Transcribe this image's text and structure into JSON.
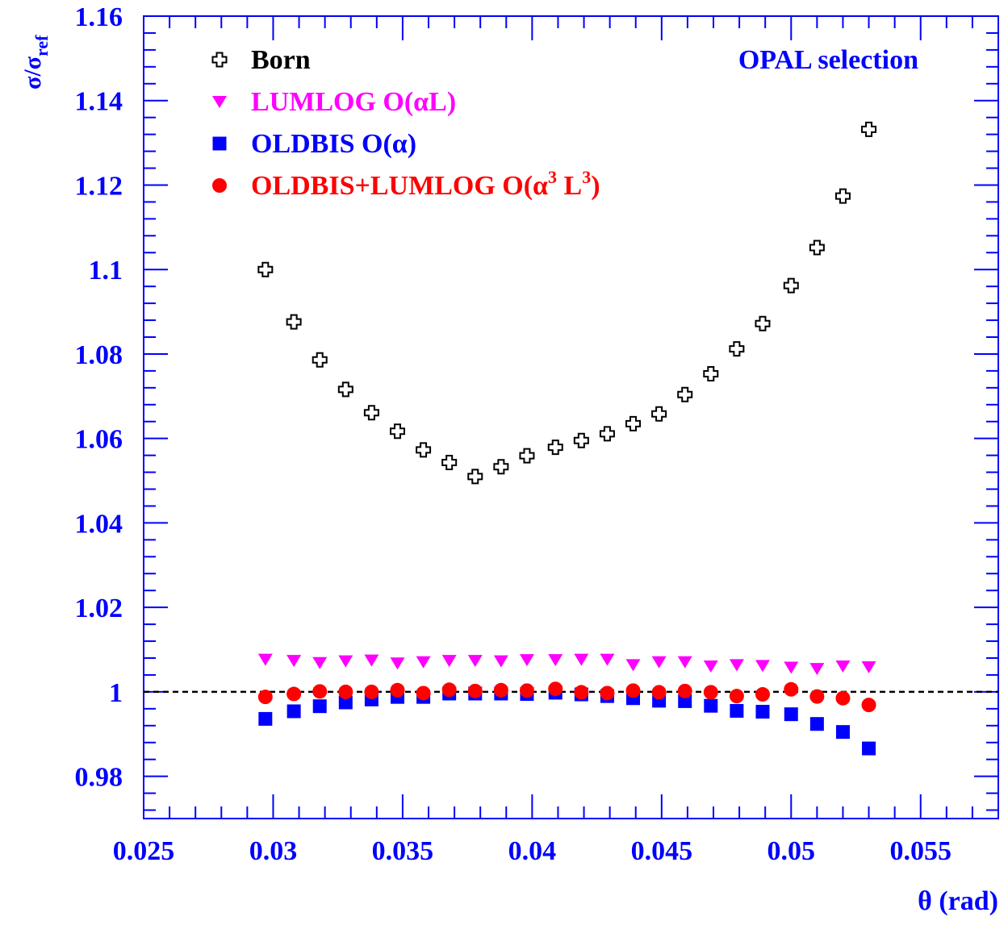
{
  "chart_data": {
    "type": "scatter",
    "xlabel": "θ (rad)",
    "ylabel": {
      "main": "σ/σ",
      "sub": "ref"
    },
    "xlim": [
      0.025,
      0.058
    ],
    "ylim": [
      0.97,
      1.16
    ],
    "xticks": [
      0.025,
      0.03,
      0.035,
      0.04,
      0.045,
      0.05,
      0.055
    ],
    "xtick_labels": [
      "0.025",
      "0.03",
      "0.035",
      "0.04",
      "0.045",
      "0.05",
      "0.055"
    ],
    "yticks": [
      0.98,
      1.0,
      1.02,
      1.04,
      1.06,
      1.08,
      1.1,
      1.12,
      1.14,
      1.16
    ],
    "ytick_labels": [
      "0.98",
      "1",
      "1.02",
      "1.04",
      "1.06",
      "1.08",
      "1.1",
      "1.12",
      "1.14",
      "1.16"
    ],
    "x_minor_step": 0.001,
    "y_minor_step": 0.004,
    "reference_line": {
      "y": 1.0,
      "style": "dashed",
      "color": "#000000"
    },
    "annotation": {
      "text": "OPAL selection",
      "color": "#0000ff",
      "position": "top-right"
    },
    "legend_position": "top-left",
    "x": [
      0.0297,
      0.0308,
      0.0318,
      0.0328,
      0.0338,
      0.0348,
      0.0358,
      0.0368,
      0.0378,
      0.0388,
      0.0398,
      0.0409,
      0.0419,
      0.0429,
      0.0439,
      0.0449,
      0.0459,
      0.0469,
      0.0479,
      0.0489,
      0.05,
      0.051,
      0.052,
      0.053
    ],
    "series": [
      {
        "name": "Born",
        "marker": "open-cross",
        "color": "#000000",
        "values": [
          1.1,
          1.0876,
          1.0786,
          1.0716,
          1.0661,
          1.0617,
          1.0573,
          1.0543,
          1.051,
          1.0533,
          1.0559,
          1.0579,
          1.0595,
          1.0611,
          1.0635,
          1.0658,
          1.0704,
          1.0753,
          1.0812,
          1.0872,
          1.0962,
          1.1052,
          1.1174,
          1.1332
        ]
      },
      {
        "name": "LUMLOG O(αL)",
        "legend_parts": [
          {
            "t": "LUMLOG O(αL)"
          }
        ],
        "marker": "triangle-down",
        "color": "#ff00ff",
        "values": [
          1.0077,
          1.0074,
          1.0069,
          1.0073,
          1.0075,
          1.0068,
          1.0071,
          1.0074,
          1.0074,
          1.0073,
          1.0076,
          1.0076,
          1.0077,
          1.0077,
          1.0064,
          1.0071,
          1.0071,
          1.0061,
          1.0064,
          1.0062,
          1.0058,
          1.0055,
          1.0061,
          1.0059
        ]
      },
      {
        "name": "OLDBIS O(α)",
        "legend_parts": [
          {
            "t": "OLDBIS O(α)"
          }
        ],
        "marker": "square",
        "color": "#0000ff",
        "values": [
          0.9936,
          0.9954,
          0.9966,
          0.9975,
          0.9982,
          0.9988,
          0.9988,
          0.9996,
          0.9996,
          0.9996,
          0.9995,
          0.9998,
          0.9994,
          0.999,
          0.9985,
          0.9979,
          0.9978,
          0.9967,
          0.9955,
          0.9953,
          0.9947,
          0.9924,
          0.9905,
          0.9866
        ]
      },
      {
        "name": "OLDBIS+LUMLOG O(α3 L3)",
        "legend_parts": [
          {
            "t": "OLDBIS+LUMLOG O(α"
          },
          {
            "t": "3",
            "sup": true
          },
          {
            "t": " L"
          },
          {
            "t": "3",
            "sup": true
          },
          {
            "t": ")"
          }
        ],
        "marker": "circle",
        "color": "#ff0000",
        "values": [
          0.9988,
          0.9995,
          1.0001,
          1.0,
          1.0,
          1.0004,
          0.9997,
          1.0005,
          1.0002,
          1.0004,
          1.0003,
          1.0007,
          0.9999,
          0.9997,
          1.0003,
          0.9999,
          1.0002,
          0.9999,
          0.999,
          0.9994,
          1.0006,
          0.9989,
          0.9985,
          0.9969
        ]
      }
    ]
  }
}
